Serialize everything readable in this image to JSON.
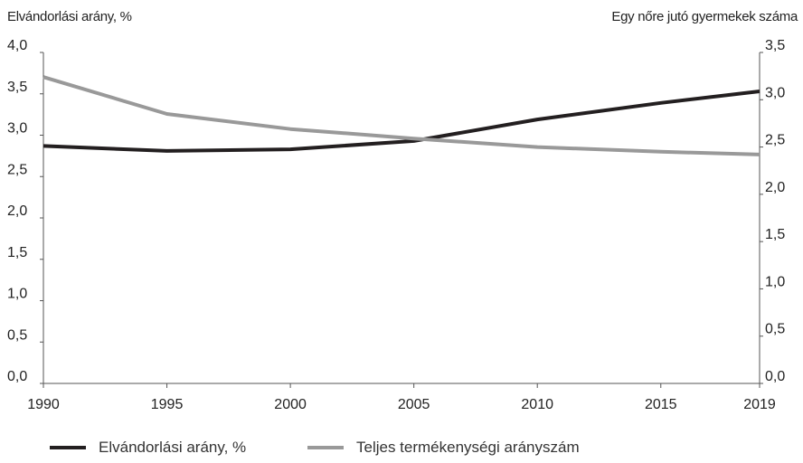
{
  "chart_data": {
    "type": "line",
    "x": [
      1990,
      1995,
      2000,
      2005,
      2010,
      2015,
      2019
    ],
    "xticks": [
      "1990",
      "1995",
      "2000",
      "2005",
      "2010",
      "2015",
      "2019"
    ],
    "ylabel_left": "Elvándorlási arány, %",
    "ylabel_right": "Egy nőre jutó gyermekek száma",
    "ylim_left": [
      0,
      4.0
    ],
    "ylim_right": [
      0,
      3.5
    ],
    "yticks_left": [
      "0,0",
      "0,5",
      "1,0",
      "1,5",
      "2,0",
      "2,5",
      "3,0",
      "3,5",
      "4,0"
    ],
    "yticks_right": [
      "0,0",
      "0,5",
      "1,0",
      "1,5",
      "2,0",
      "2,5",
      "3,0",
      "3,5"
    ],
    "grid": false,
    "legend_position": "bottom",
    "series": [
      {
        "name": "Elvándorlási arány, %",
        "axis": "left",
        "color": "#231f20",
        "values": [
          2.87,
          2.81,
          2.83,
          2.93,
          3.19,
          3.39,
          3.53
        ]
      },
      {
        "name": "Teljes termékenységi arányszám",
        "axis": "right",
        "color": "#999999",
        "values": [
          3.24,
          2.85,
          2.69,
          2.59,
          2.5,
          2.45,
          2.42
        ]
      }
    ]
  }
}
